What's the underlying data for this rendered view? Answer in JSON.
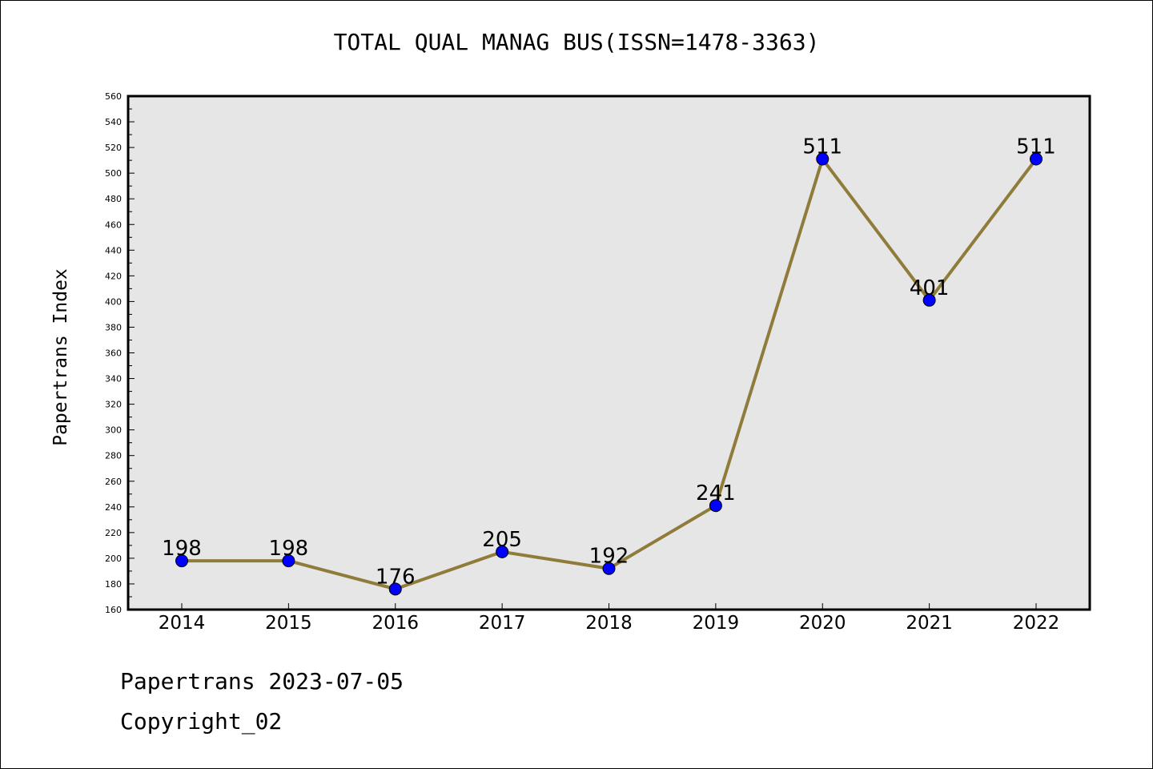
{
  "chart_data": {
    "type": "line",
    "title": "TOTAL QUAL MANAG BUS(ISSN=1478-3363)",
    "xlabel": "",
    "ylabel": "Papertrans Index",
    "categories": [
      "2014",
      "2015",
      "2016",
      "2017",
      "2018",
      "2019",
      "2020",
      "2021",
      "2022"
    ],
    "series": [
      {
        "name": "Papertrans Index",
        "values": [
          198,
          198,
          176,
          205,
          192,
          241,
          511,
          401,
          511
        ],
        "data_labels": [
          "198",
          "198",
          "176",
          "205",
          "192",
          "241",
          "511",
          "401",
          "511"
        ]
      }
    ],
    "ylim": [
      160,
      560
    ],
    "ytick_step": 20,
    "grid": false,
    "legend": "none",
    "line_color": "#8f7c3a",
    "marker_color": "#0000ff",
    "plot_background": "#e6e6e6"
  },
  "footer": {
    "line1": "Papertrans 2023-07-05",
    "line2": "Copyright_02"
  }
}
